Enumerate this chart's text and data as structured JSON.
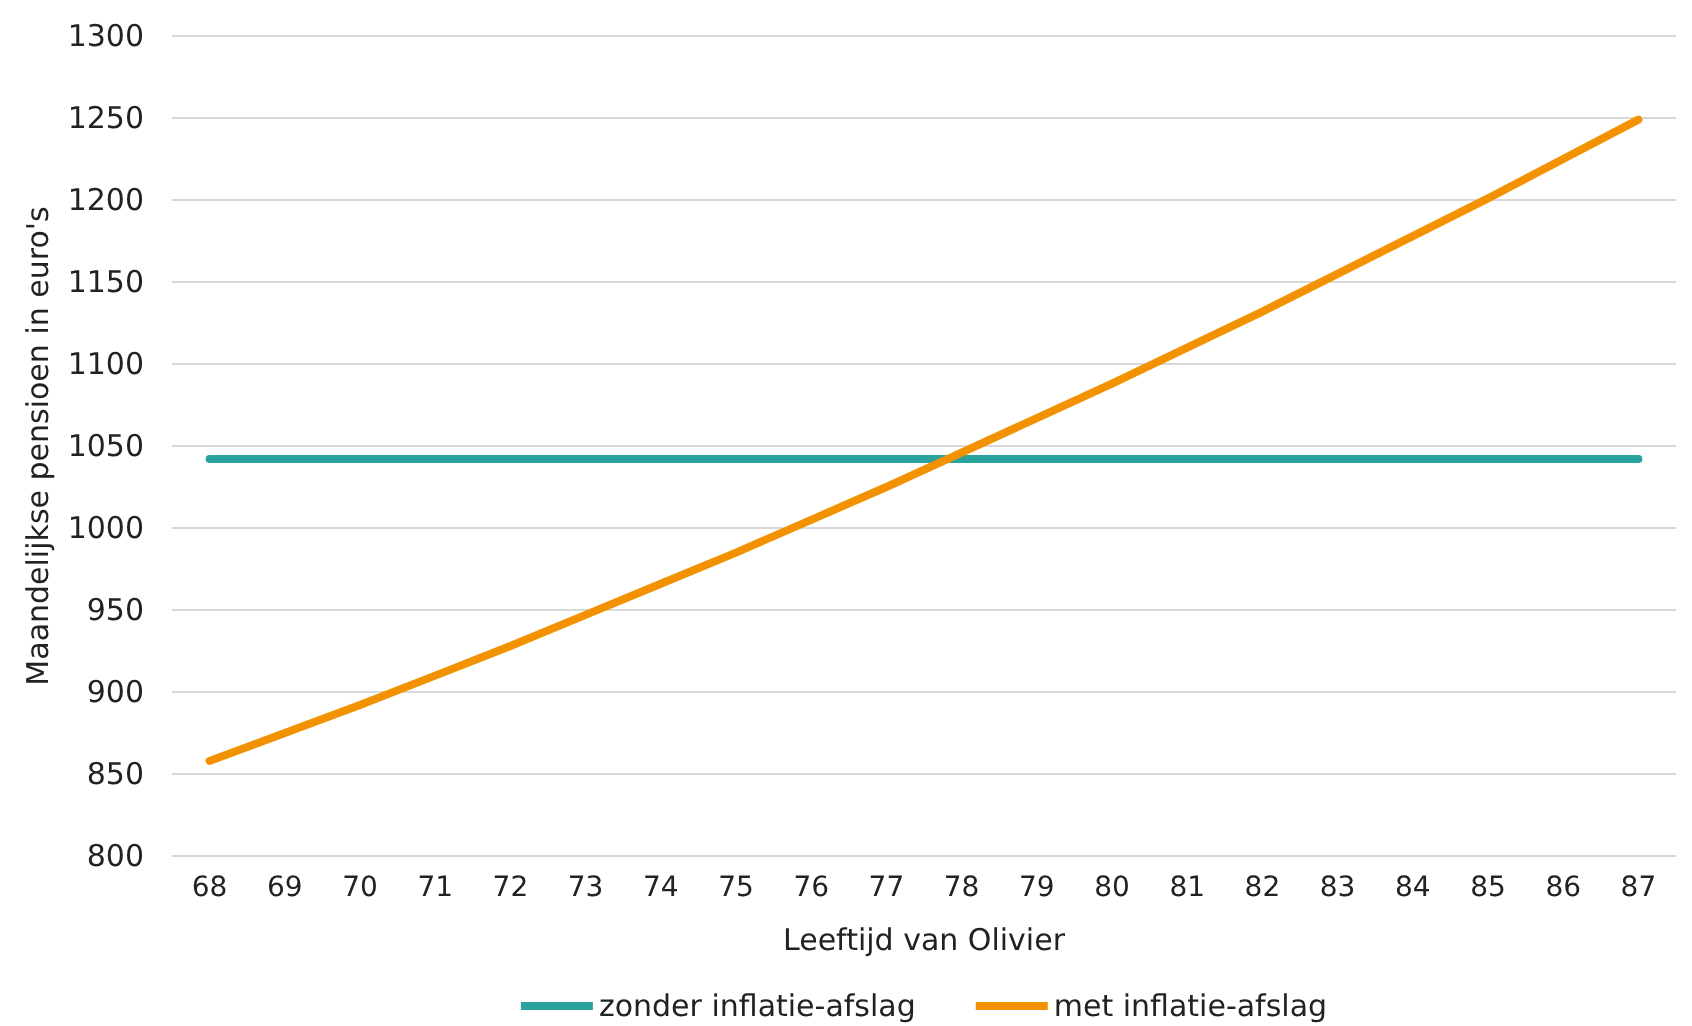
{
  "chart_data": {
    "type": "line",
    "xlabel": "Leeftijd van Olivier",
    "ylabel": "Maandelijkse pensioen in euro's",
    "categories": [
      "68",
      "69",
      "70",
      "71",
      "72",
      "73",
      "74",
      "75",
      "76",
      "77",
      "78",
      "79",
      "80",
      "81",
      "82",
      "83",
      "84",
      "85",
      "86",
      "87"
    ],
    "series": [
      {
        "name": "zonder inflatie-afslag",
        "color": "#2aa39f",
        "values": [
          1042,
          1042,
          1042,
          1042,
          1042,
          1042,
          1042,
          1042,
          1042,
          1042,
          1042,
          1042,
          1042,
          1042,
          1042,
          1042,
          1042,
          1042,
          1042,
          1042
        ]
      },
      {
        "name": "met inflatie-afslag",
        "color": "#f39200",
        "values": [
          858,
          875,
          892,
          910,
          928,
          947,
          966,
          985,
          1005,
          1025,
          1046,
          1067,
          1088,
          1110,
          1132,
          1155,
          1178,
          1201,
          1225,
          1249
        ]
      }
    ],
    "ylim": [
      800,
      1300
    ],
    "yticks": [
      800,
      850,
      900,
      950,
      1000,
      1050,
      1100,
      1150,
      1200,
      1250,
      1300
    ],
    "grid": "y",
    "legend": "bottom",
    "marker": "none",
    "line_style": "solid"
  }
}
